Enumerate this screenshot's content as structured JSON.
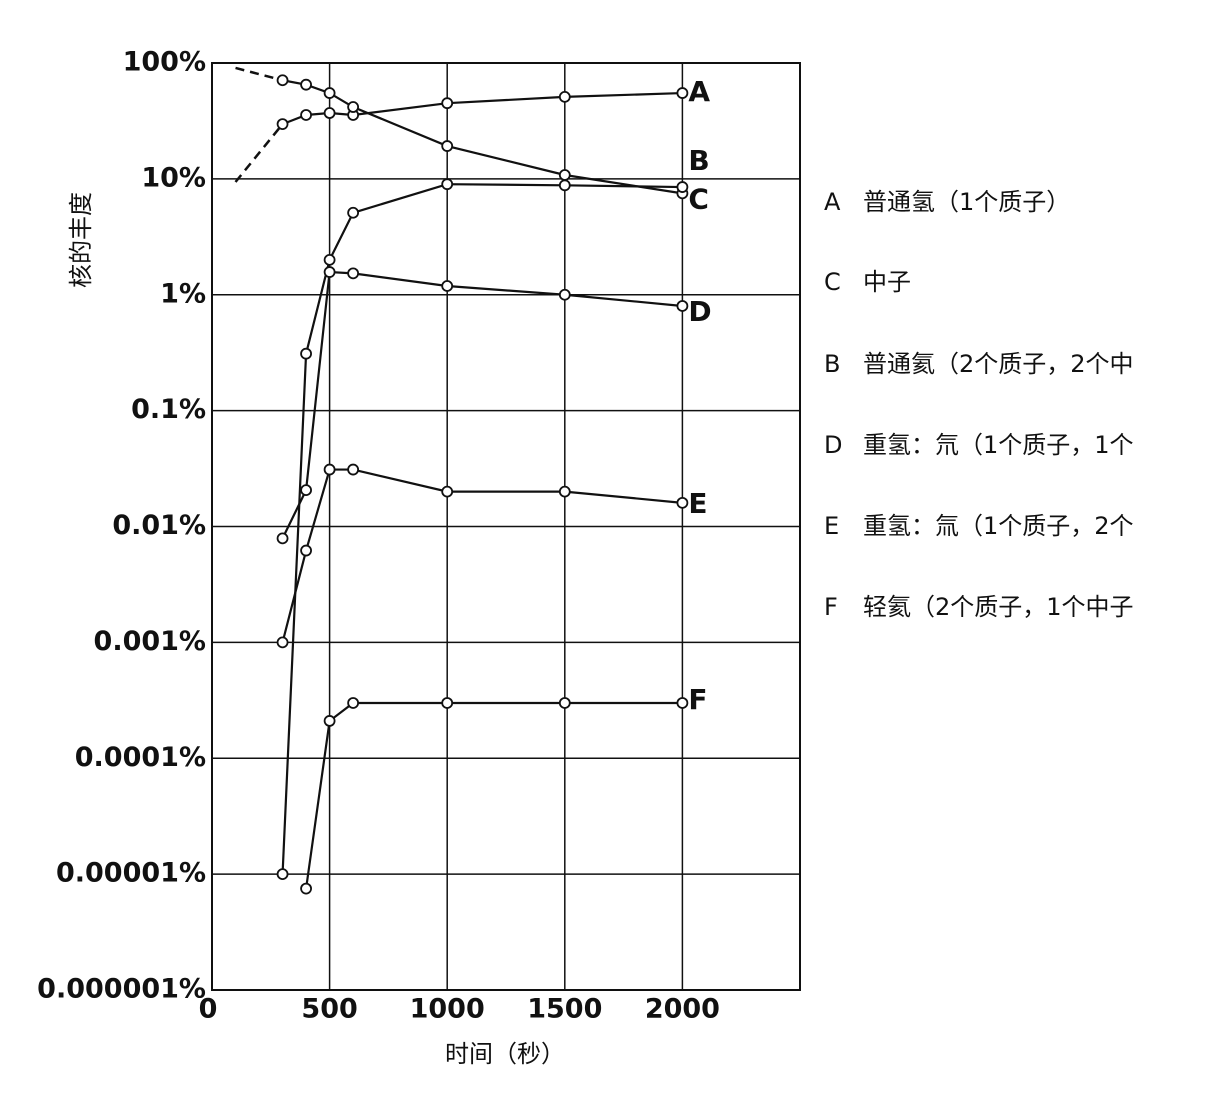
{
  "chart_data": {
    "type": "line",
    "log_y": true,
    "grid": true,
    "x_label": "时间（秒）",
    "y_label": "核的丰度",
    "xlim": [
      0,
      2500
    ],
    "xticks": [
      0,
      500,
      1000,
      1500,
      2000
    ],
    "ylim": [
      1e-06,
      100
    ],
    "yticks": [
      {
        "value": 1e-06,
        "label": "0.000001%"
      },
      {
        "value": 1e-05,
        "label": "0.00001%"
      },
      {
        "value": 0.0001,
        "label": "0.0001%"
      },
      {
        "value": 0.001,
        "label": "0.001%"
      },
      {
        "value": 0.01,
        "label": "0.01%"
      },
      {
        "value": 0.1,
        "label": "0.1%"
      },
      {
        "value": 1,
        "label": "1%"
      },
      {
        "value": 10,
        "label": "10%"
      },
      {
        "value": 100,
        "label": "100%"
      }
    ],
    "series": [
      {
        "name": "A",
        "description": "普通氢（1个质子）",
        "color": "#111111",
        "lead_dashed": true,
        "x": [
          100,
          300,
          400,
          500,
          600,
          1000,
          1500,
          2000
        ],
        "values": [
          9.4,
          29.7,
          35.6,
          37,
          35.6,
          45,
          51,
          55
        ]
      },
      {
        "name": "C",
        "description": "中子",
        "color": "#111111",
        "lead_dashed": true,
        "x": [
          100,
          300,
          400,
          500,
          600,
          1000,
          1500,
          2000
        ],
        "values": [
          90.6,
          71,
          65,
          55,
          41.7,
          19.2,
          10.8,
          7.5
        ]
      },
      {
        "name": "B",
        "description": "普通氦（2个质子，2个中",
        "color": "#111111",
        "x": [
          300,
          400,
          500,
          600,
          1000,
          1500,
          2000
        ],
        "values": [
          1e-05,
          0.31,
          2.0,
          5.1,
          9.0,
          8.8,
          8.5
        ]
      },
      {
        "name": "D",
        "description": "重氢：氘（1个质子，1个",
        "color": "#111111",
        "x": [
          300,
          400,
          500,
          600,
          1000,
          1500,
          2000
        ],
        "values": [
          0.0079,
          0.0206,
          1.57,
          1.53,
          1.19,
          1.0,
          0.8
        ]
      },
      {
        "name": "E",
        "description": "重氢：氚（1个质子，2个",
        "color": "#111111",
        "x": [
          300,
          400,
          500,
          600,
          1000,
          1500,
          2000
        ],
        "values": [
          0.001,
          0.0062,
          0.031,
          0.031,
          0.02,
          0.02,
          0.016
        ]
      },
      {
        "name": "F",
        "description": "轻氦（2个质子，1个中子",
        "color": "#111111",
        "x": [
          400,
          500,
          600,
          1000,
          1500,
          2000
        ],
        "values": [
          7.5e-06,
          0.00021,
          0.0003,
          0.0003,
          0.0003,
          0.0003
        ]
      }
    ]
  }
}
